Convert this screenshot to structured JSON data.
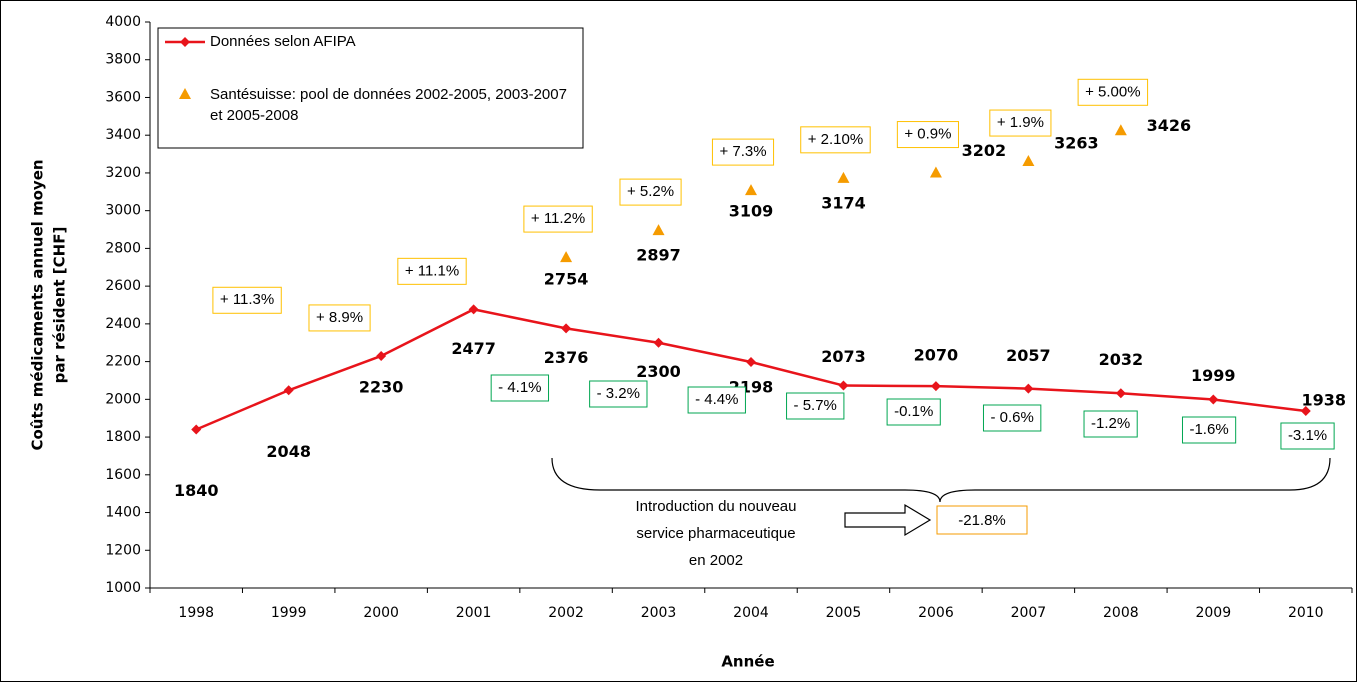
{
  "chart_data": {
    "type": "line",
    "categories": [
      "1998",
      "1999",
      "2000",
      "2001",
      "2002",
      "2003",
      "2004",
      "2005",
      "2006",
      "2007",
      "2008",
      "2009",
      "2010"
    ],
    "series": [
      {
        "name": "Données selon AFIPA",
        "color": "#e8141b",
        "marker": "diamond",
        "values": [
          1840,
          2048,
          2230,
          2477,
          2376,
          2300,
          2198,
          2073,
          2070,
          2057,
          2032,
          1999,
          1938
        ],
        "change_labels": [
          null,
          "+ 11.3%",
          "+ 8.9%",
          "+ 11.1%",
          "- 4.1%",
          "- 3.2%",
          "- 4.4%",
          "- 5.7%",
          "-0.1%",
          "- 0.6%",
          "-1.2%",
          "-1.6%",
          "-3.1%"
        ]
      },
      {
        "name": "Santésuisse: pool de données 2002-2005, 2003-2007 et 2005-2008",
        "color": "#f59b00",
        "marker": "triangle",
        "values": [
          null,
          null,
          null,
          null,
          2754,
          2897,
          3109,
          3174,
          3202,
          3263,
          3426,
          null,
          null
        ],
        "change_labels": [
          null,
          null,
          null,
          null,
          "+ 11.2%",
          "+ 5.2%",
          "+ 7.3%",
          "+ 2.10%",
          "+ 0.9%",
          "+ 1.9%",
          "+ 5.00%",
          null,
          null
        ]
      }
    ],
    "up_box_color": "#ffc000",
    "down_box_color": "#00a651",
    "xlabel": "Année",
    "ylabel": [
      "Coûts médicaments annuel moyen",
      "par résident [CHF]"
    ],
    "ylim": [
      1000,
      4000
    ],
    "yticks": [
      1000,
      1200,
      1400,
      1600,
      1800,
      2000,
      2200,
      2400,
      2600,
      2800,
      3000,
      3200,
      3400,
      3600,
      3800,
      4000
    ],
    "annotation_lines": [
      "Introduction du nouveau",
      "service pharmaceutique",
      "en 2002"
    ],
    "annotation_value": "-21.8%",
    "legend": "upper left"
  }
}
